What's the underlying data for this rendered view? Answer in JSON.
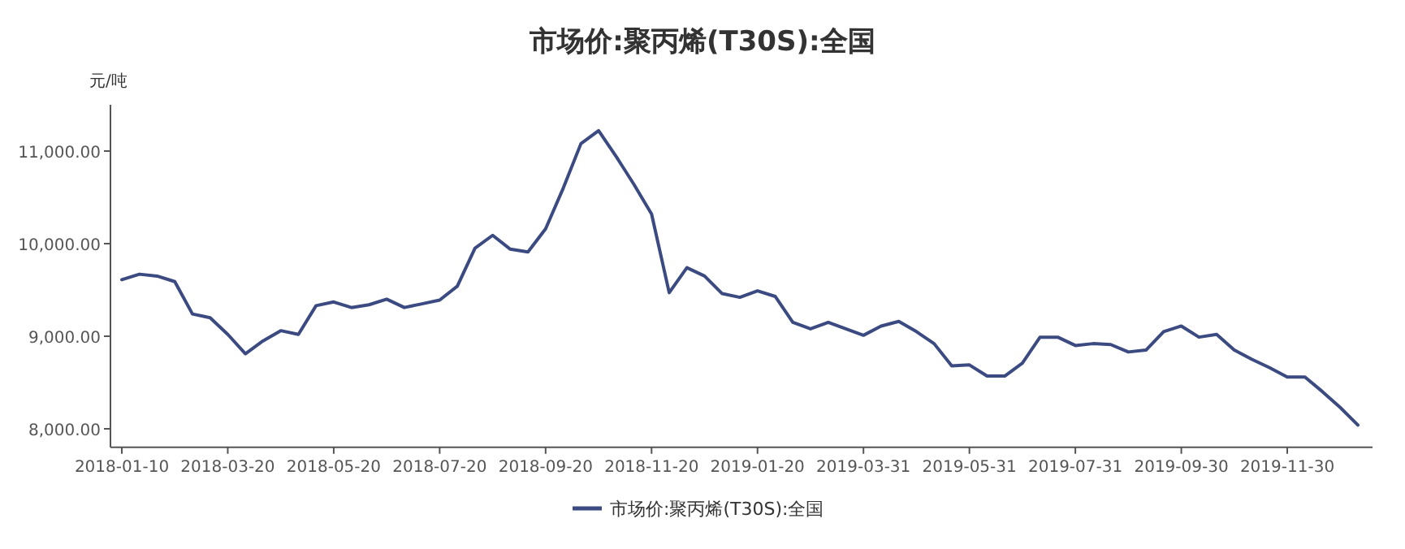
{
  "chart_data": {
    "type": "line",
    "title": "市场价:聚丙烯(T30S):全国",
    "ylabel": "元/吨",
    "categories": [
      "2018-01-10",
      null,
      null,
      null,
      null,
      null,
      "2018-03-20",
      null,
      null,
      null,
      null,
      null,
      "2018-05-20",
      null,
      null,
      null,
      null,
      null,
      "2018-07-20",
      null,
      null,
      null,
      null,
      null,
      "2018-09-20",
      null,
      null,
      null,
      null,
      null,
      "2018-11-20",
      null,
      null,
      null,
      null,
      null,
      "2019-01-20",
      null,
      null,
      null,
      null,
      null,
      "2019-03-31",
      null,
      null,
      null,
      null,
      null,
      "2019-05-31",
      null,
      null,
      null,
      null,
      null,
      "2019-07-31",
      null,
      null,
      null,
      null,
      null,
      "2019-09-30",
      null,
      null,
      null,
      null,
      null,
      "2019-11-30",
      null,
      null,
      null,
      null
    ],
    "series": [
      {
        "name": "市场价:聚丙烯(T30S):全国",
        "color": "#3b4a80",
        "values": [
          9610,
          9670,
          9650,
          9590,
          9240,
          9200,
          9020,
          8810,
          8950,
          9060,
          9020,
          9330,
          9370,
          9310,
          9340,
          9400,
          9310,
          9350,
          9390,
          9540,
          9950,
          10090,
          9940,
          9910,
          10160,
          10600,
          11080,
          11220,
          10940,
          10640,
          10320,
          9470,
          9740,
          9650,
          9460,
          9420,
          9490,
          9430,
          9150,
          9080,
          9150,
          9080,
          9010,
          9110,
          9160,
          9050,
          8920,
          8680,
          8690,
          8570,
          8570,
          8710,
          8990,
          8990,
          8900,
          8920,
          8910,
          8830,
          8850,
          9050,
          9110,
          8990,
          9020,
          8850,
          8750,
          8660,
          8560,
          8560,
          8400,
          8230,
          8040
        ]
      }
    ],
    "ylim": [
      7800,
      11500
    ],
    "yticks": [
      {
        "value": 8000,
        "label": "8,000.00"
      },
      {
        "value": 9000,
        "label": "9,000.00"
      },
      {
        "value": 10000,
        "label": "10,000.00"
      },
      {
        "value": 11000,
        "label": "11,000.00"
      }
    ],
    "grid": false,
    "legend": "bottom",
    "marker": "none",
    "line_style": "solid"
  }
}
